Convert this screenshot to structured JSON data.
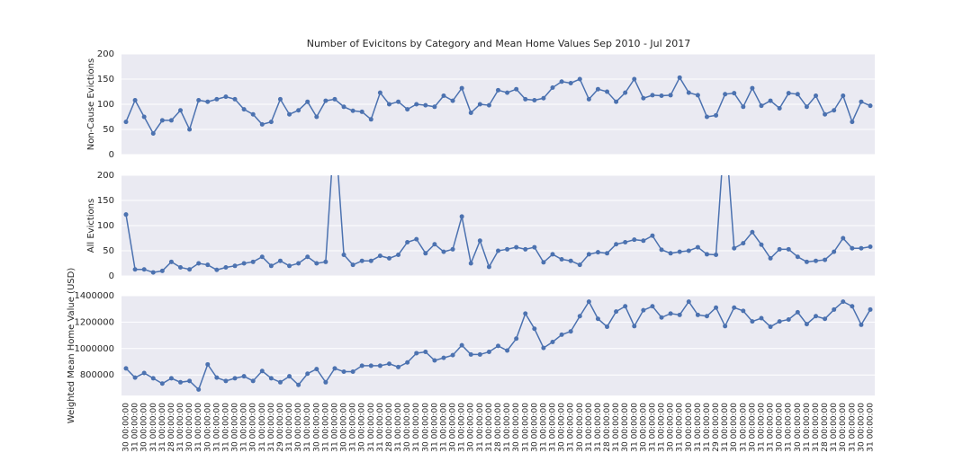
{
  "chart_data": [
    {
      "type": "line",
      "title": "Number of Evicitons by Category and Mean Home Values Sep 2010 - Jul 2017",
      "ylabel": "Non-Cause Evictions",
      "color": "#4c72b0",
      "values": [
        65,
        108,
        75,
        42,
        68,
        68,
        88,
        50,
        108,
        105,
        110,
        115,
        110,
        90,
        80,
        60,
        65,
        110,
        80,
        88,
        105,
        75,
        107,
        110,
        95,
        87,
        85,
        70,
        123,
        100,
        105,
        90,
        100,
        98,
        95,
        117,
        107,
        132,
        83,
        100,
        98,
        128,
        123,
        130,
        110,
        108,
        112,
        133,
        145,
        142,
        150,
        110,
        130,
        125,
        105,
        123,
        150,
        112,
        118,
        117,
        118,
        153,
        123,
        118,
        75,
        78,
        120,
        122,
        95,
        132,
        97,
        107,
        92,
        122,
        120,
        95,
        117,
        80,
        88,
        117,
        65,
        105,
        97
      ],
      "ylim": [
        0,
        200
      ],
      "yticks": [
        0,
        50,
        100,
        150,
        200
      ],
      "grid": true
    },
    {
      "type": "line",
      "ylabel": "All Evictions",
      "color": "#4c72b0",
      "values": [
        122,
        13,
        13,
        7,
        10,
        28,
        17,
        13,
        25,
        22,
        12,
        17,
        20,
        25,
        28,
        38,
        20,
        30,
        20,
        25,
        38,
        25,
        28,
        300,
        42,
        22,
        30,
        30,
        40,
        35,
        42,
        67,
        73,
        45,
        63,
        48,
        53,
        118,
        25,
        70,
        18,
        50,
        53,
        57,
        53,
        57,
        27,
        43,
        33,
        30,
        22,
        43,
        47,
        45,
        63,
        67,
        72,
        70,
        80,
        52,
        45,
        48,
        50,
        57,
        43,
        42,
        300,
        55,
        65,
        87,
        62,
        35,
        53,
        53,
        38,
        28,
        30,
        32,
        48,
        75,
        55,
        55,
        58
      ],
      "ylim": [
        0,
        200
      ],
      "yticks": [
        0,
        50,
        100,
        150,
        200
      ],
      "grid": true
    },
    {
      "type": "line",
      "ylabel": "Weighted Mean Home Value (USD)",
      "color": "#4c72b0",
      "values": [
        850000,
        780000,
        815000,
        775000,
        735000,
        775000,
        745000,
        755000,
        690000,
        880000,
        780000,
        755000,
        775000,
        790000,
        755000,
        830000,
        775000,
        745000,
        790000,
        725000,
        810000,
        845000,
        745000,
        850000,
        825000,
        825000,
        870000,
        870000,
        870000,
        885000,
        860000,
        895000,
        965000,
        975000,
        910000,
        930000,
        950000,
        1025000,
        955000,
        955000,
        975000,
        1020000,
        985000,
        1075000,
        1265000,
        1150000,
        1005000,
        1050000,
        1105000,
        1130000,
        1245000,
        1355000,
        1225000,
        1165000,
        1280000,
        1320000,
        1170000,
        1290000,
        1320000,
        1235000,
        1265000,
        1255000,
        1355000,
        1255000,
        1245000,
        1310000,
        1170000,
        1310000,
        1285000,
        1205000,
        1230000,
        1165000,
        1205000,
        1220000,
        1275000,
        1185000,
        1245000,
        1225000,
        1295000,
        1355000,
        1320000,
        1180000,
        1295000
      ],
      "ylim": [
        645000,
        1400000
      ],
      "yticks": [
        800000,
        1000000,
        1200000,
        1400000
      ],
      "grid": true,
      "categories": [
        "30 00:00:00",
        "31 00:00:00",
        "30 00:00:00",
        "31 00:00:00",
        "31 00:00:00",
        "28 00:00:00",
        "31 00:00:00",
        "30 00:00:00",
        "31 00:00:00",
        "30 00:00:00",
        "31 00:00:00",
        "31 00:00:00",
        "30 00:00:00",
        "31 00:00:00",
        "30 00:00:00",
        "31 00:00:00",
        "31 00:00:00",
        "29 00:00:00",
        "31 00:00:00",
        "30 00:00:00",
        "31 00:00:00",
        "30 00:00:00",
        "31 00:00:00",
        "31 00:00:00",
        "30 00:00:00",
        "31 00:00:00",
        "30 00:00:00",
        "31 00:00:00",
        "31 00:00:00",
        "28 00:00:00",
        "31 00:00:00",
        "30 00:00:00",
        "31 00:00:00",
        "30 00:00:00",
        "31 00:00:00",
        "31 00:00:00",
        "30 00:00:00",
        "31 00:00:00",
        "30 00:00:00",
        "31 00:00:00",
        "31 00:00:00",
        "28 00:00:00",
        "31 00:00:00",
        "30 00:00:00",
        "31 00:00:00",
        "30 00:00:00",
        "31 00:00:00",
        "31 00:00:00",
        "30 00:00:00",
        "31 00:00:00",
        "30 00:00:00",
        "31 00:00:00",
        "31 00:00:00",
        "28 00:00:00",
        "31 00:00:00",
        "30 00:00:00",
        "31 00:00:00",
        "30 00:00:00",
        "31 00:00:00",
        "31 00:00:00",
        "30 00:00:00",
        "31 00:00:00",
        "30 00:00:00",
        "31 00:00:00",
        "31 00:00:00",
        "29 00:00:00",
        "31 00:00:00",
        "30 00:00:00",
        "31 00:00:00",
        "30 00:00:00",
        "31 00:00:00",
        "31 00:00:00",
        "30 00:00:00",
        "31 00:00:00",
        "30 00:00:00",
        "31 00:00:00",
        "31 00:00:00",
        "28 00:00:00",
        "31 00:00:00",
        "30 00:00:00",
        "31 00:00:00",
        "30 00:00:00",
        "31 00:00:00"
      ]
    }
  ]
}
